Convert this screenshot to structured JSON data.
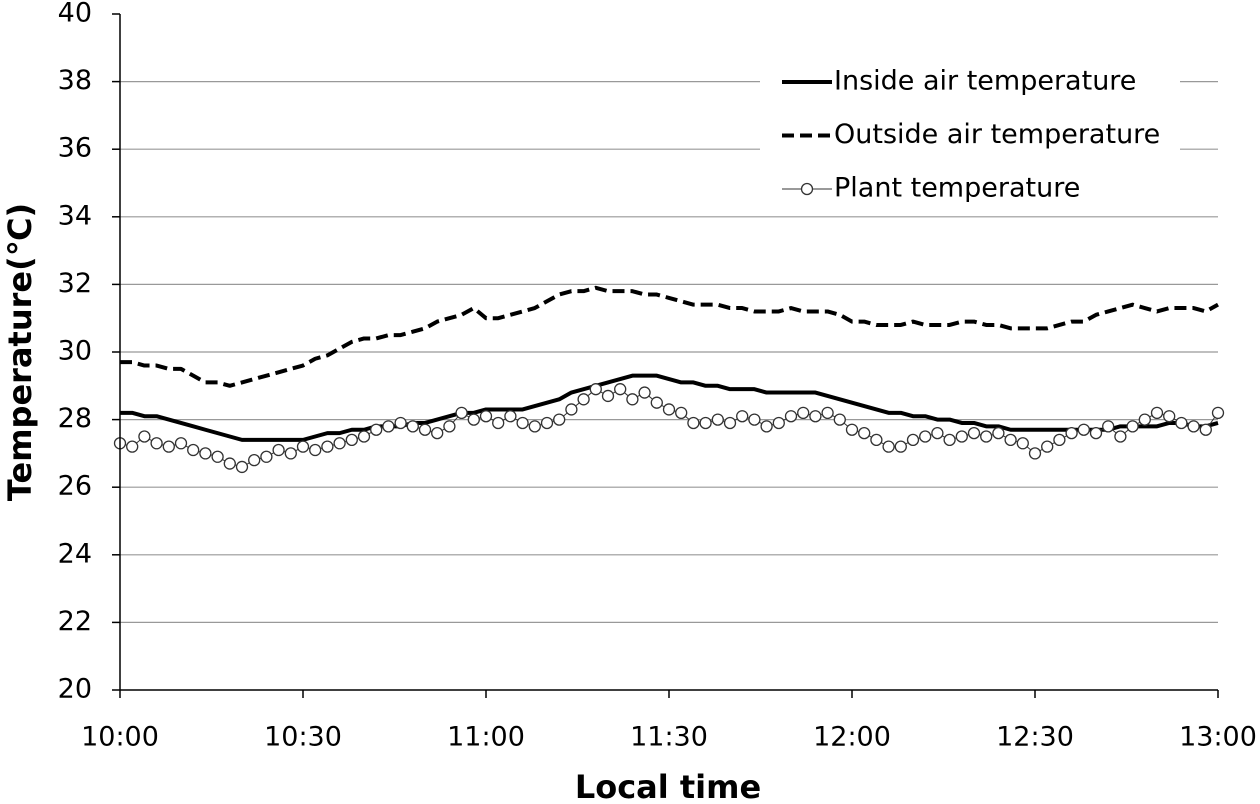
{
  "chart_data": {
    "type": "line",
    "x_label": "Local time",
    "y_label": "Temperature(℃)",
    "x": [
      "10:00",
      "10:02",
      "10:04",
      "10:06",
      "10:08",
      "10:10",
      "10:12",
      "10:14",
      "10:16",
      "10:18",
      "10:20",
      "10:22",
      "10:24",
      "10:26",
      "10:28",
      "10:30",
      "10:32",
      "10:34",
      "10:36",
      "10:38",
      "10:40",
      "10:42",
      "10:44",
      "10:46",
      "10:48",
      "10:50",
      "10:52",
      "10:54",
      "10:56",
      "10:58",
      "11:00",
      "11:02",
      "11:04",
      "11:06",
      "11:08",
      "11:10",
      "11:12",
      "11:14",
      "11:16",
      "11:18",
      "11:20",
      "11:22",
      "11:24",
      "11:26",
      "11:28",
      "11:30",
      "11:32",
      "11:34",
      "11:36",
      "11:38",
      "11:40",
      "11:42",
      "11:44",
      "11:46",
      "11:48",
      "11:50",
      "11:52",
      "11:54",
      "11:56",
      "11:58",
      "12:00",
      "12:02",
      "12:04",
      "12:06",
      "12:08",
      "12:10",
      "12:12",
      "12:14",
      "12:16",
      "12:18",
      "12:20",
      "12:22",
      "12:24",
      "12:26",
      "12:28",
      "12:30",
      "12:32",
      "12:34",
      "12:36",
      "12:38",
      "12:40",
      "12:42",
      "12:44",
      "12:46",
      "12:48",
      "12:50",
      "12:52",
      "12:54",
      "12:56",
      "12:58",
      "13:00"
    ],
    "series": [
      {
        "name": "Inside air temperature",
        "color": "#000000",
        "line_style": "solid",
        "line_width": 4,
        "values": [
          28.2,
          28.2,
          28.1,
          28.1,
          28.0,
          27.9,
          27.8,
          27.7,
          27.6,
          27.5,
          27.4,
          27.4,
          27.4,
          27.4,
          27.4,
          27.4,
          27.5,
          27.6,
          27.6,
          27.7,
          27.7,
          27.8,
          27.8,
          27.8,
          27.9,
          27.9,
          28.0,
          28.1,
          28.2,
          28.2,
          28.3,
          28.3,
          28.3,
          28.3,
          28.4,
          28.5,
          28.6,
          28.8,
          28.9,
          29.0,
          29.1,
          29.2,
          29.3,
          29.3,
          29.3,
          29.2,
          29.1,
          29.1,
          29.0,
          29.0,
          28.9,
          28.9,
          28.9,
          28.8,
          28.8,
          28.8,
          28.8,
          28.8,
          28.7,
          28.6,
          28.5,
          28.4,
          28.3,
          28.2,
          28.2,
          28.1,
          28.1,
          28.0,
          28.0,
          27.9,
          27.9,
          27.8,
          27.8,
          27.7,
          27.7,
          27.7,
          27.7,
          27.7,
          27.7,
          27.7,
          27.7,
          27.7,
          27.8,
          27.8,
          27.8,
          27.8,
          27.9,
          27.9,
          27.8,
          27.8,
          27.9
        ]
      },
      {
        "name": "Outside air temperature",
        "color": "#000000",
        "line_style": "dashed",
        "line_width": 4,
        "values": [
          29.7,
          29.7,
          29.6,
          29.6,
          29.5,
          29.5,
          29.3,
          29.1,
          29.1,
          29.0,
          29.1,
          29.2,
          29.3,
          29.4,
          29.5,
          29.6,
          29.8,
          29.9,
          30.1,
          30.3,
          30.4,
          30.4,
          30.5,
          30.5,
          30.6,
          30.7,
          30.9,
          31.0,
          31.1,
          31.3,
          31.0,
          31.0,
          31.1,
          31.2,
          31.3,
          31.5,
          31.7,
          31.8,
          31.8,
          31.9,
          31.8,
          31.8,
          31.8,
          31.7,
          31.7,
          31.6,
          31.5,
          31.4,
          31.4,
          31.4,
          31.3,
          31.3,
          31.2,
          31.2,
          31.2,
          31.3,
          31.2,
          31.2,
          31.2,
          31.1,
          30.9,
          30.9,
          30.8,
          30.8,
          30.8,
          30.9,
          30.8,
          30.8,
          30.8,
          30.9,
          30.9,
          30.8,
          30.8,
          30.7,
          30.7,
          30.7,
          30.7,
          30.8,
          30.9,
          30.9,
          31.1,
          31.2,
          31.3,
          31.4,
          31.3,
          31.2,
          31.3,
          31.3,
          31.3,
          31.2,
          31.4
        ]
      },
      {
        "name": "Plant temperature",
        "color": "#333333",
        "line_style": "solid",
        "line_width": 1,
        "marker": "circle",
        "values": [
          27.3,
          27.2,
          27.5,
          27.3,
          27.2,
          27.3,
          27.1,
          27.0,
          26.9,
          26.7,
          26.6,
          26.8,
          26.9,
          27.1,
          27.0,
          27.2,
          27.1,
          27.2,
          27.3,
          27.4,
          27.5,
          27.7,
          27.8,
          27.9,
          27.8,
          27.7,
          27.6,
          27.8,
          28.2,
          28.0,
          28.1,
          27.9,
          28.1,
          27.9,
          27.8,
          27.9,
          28.0,
          28.3,
          28.6,
          28.9,
          28.7,
          28.9,
          28.6,
          28.8,
          28.5,
          28.3,
          28.2,
          27.9,
          27.9,
          28.0,
          27.9,
          28.1,
          28.0,
          27.8,
          27.9,
          28.1,
          28.2,
          28.1,
          28.2,
          28.0,
          27.7,
          27.6,
          27.4,
          27.2,
          27.2,
          27.4,
          27.5,
          27.6,
          27.4,
          27.5,
          27.6,
          27.5,
          27.6,
          27.4,
          27.3,
          27.0,
          27.2,
          27.4,
          27.6,
          27.7,
          27.6,
          27.8,
          27.5,
          27.8,
          28.0,
          28.2,
          28.1,
          27.9,
          27.8,
          27.7,
          28.2
        ]
      }
    ],
    "xlim": [
      "10:00",
      "13:00"
    ],
    "xticks": [
      "10:00",
      "10:30",
      "11:00",
      "11:30",
      "12:00",
      "12:30",
      "13:00"
    ],
    "ylim": [
      20,
      40
    ],
    "yticks": [
      20,
      22,
      24,
      26,
      28,
      30,
      32,
      34,
      36,
      38,
      40
    ],
    "grid": true,
    "legend": "upper right"
  }
}
